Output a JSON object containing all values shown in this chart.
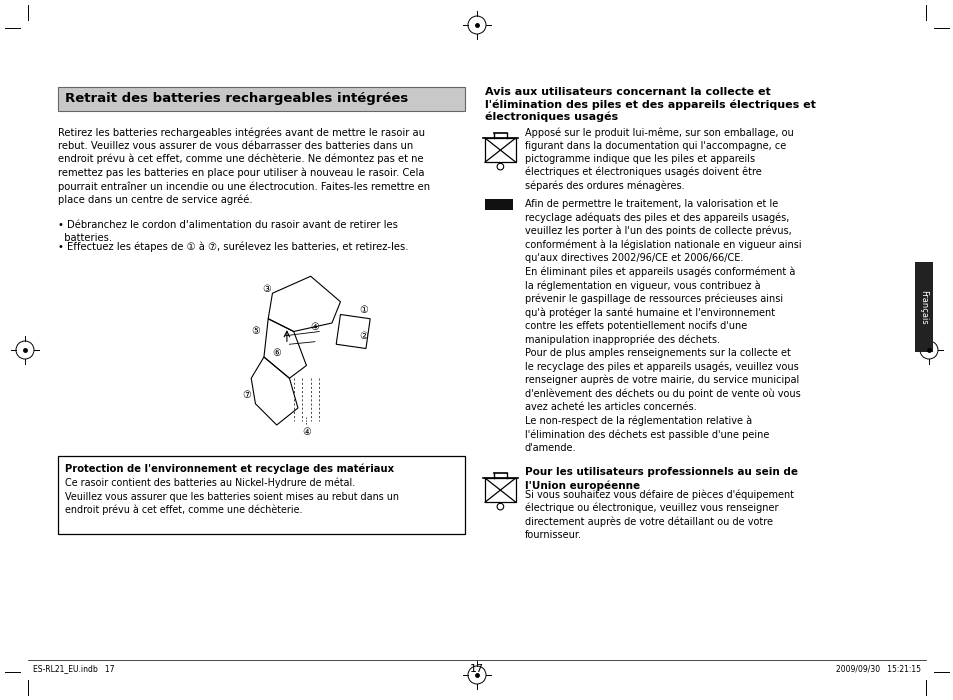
{
  "bg_color": "#ffffff",
  "page_number": "17",
  "footer_left": "ES-RL21_EU.indb   17",
  "footer_right": "2009/09/30   15:21:15",
  "left_title_box_text": "Retrait des batteries rechargeables intégrées",
  "left_body": "Retirez les batteries rechargeables intégrées avant de mettre le rasoir au\nrebut. Veuillez vous assurer de vous débarrasser des batteries dans un\nendroit prévu à cet effet, comme une déchèterie. Ne démontez pas et ne\nremettez pas les batteries en place pour utiliser à nouveau le rasoir. Cela\npourrait entraîner un incendie ou une électrocution. Faites-les remettre en\nplace dans un centre de service agréé.",
  "bullet1": "• Débranchez le cordon d'alimentation du rasoir avant de retirer les\n  batteries.",
  "bullet2": "• Effectuez les étapes de ① à ⑦, surélevez les batteries, et retirez-les.",
  "protection_title": "Protection de l'environnement et recyclage des matériaux",
  "protection_body": "Ce rasoir contient des batteries au Nickel-Hydrure de métal.\nVeuillez vous assurer que les batteries soient mises au rebut dans un\nendroit prévu à cet effet, comme une déchèterie.",
  "right_title_line1": "Avis aux utilisateurs concernant la collecte et",
  "right_title_line2": "l'élimination des piles et des appareils électriques et",
  "right_title_line3": "électroniques usagés",
  "right_para1": "Apposé sur le produit lui-même, sur son emballage, ou\nfigurant dans la documentation qui l'accompagne, ce\npictogramme indique que les piles et appareils\nélectriques et électroniques usagés doivent être\nséparés des ordures ménagères.",
  "right_para2": "Afin de permettre le traitement, la valorisation et le\nrecyclage adéquats des piles et des appareils usagés,\nveuillez les porter à l'un des points de collecte prévus,\nconformément à la législation nationale en vigueur ainsi\nqu'aux directives 2002/96/CE et 2006/66/CE.\nEn éliminant piles et appareils usagés conformément à\nla réglementation en vigueur, vous contribuez à\nprévenir le gaspillage de ressources précieuses ainsi\nqu'à protéger la santé humaine et l'environnement\ncontre les effets potentiellement nocifs d'une\nmanipulation inappropriée des déchets.\nPour de plus amples renseignements sur la collecte et\nle recyclage des piles et appareils usagés, veuillez vous\nrenseigner auprès de votre mairie, du service municipal\nd'enlèvement des déchets ou du point de vente où vous\navez acheté les articles concernés.\nLe non-respect de la réglementation relative à\nl'élimination des déchets est passible d'une peine\nd'amende.",
  "right_para3_title": "Pour les utilisateurs professionnels au sein de\nl'Union européenne",
  "right_para3_body": "Si vous souhaitez vous défaire de pièces d'équipement\nélectrique ou électronique, veuillez vous renseigner\ndirectement auprès de votre détaillant ou de votre\nfournisseur.",
  "francais_label": "Français",
  "sidebar_color": "#222222",
  "text_color": "#000000"
}
